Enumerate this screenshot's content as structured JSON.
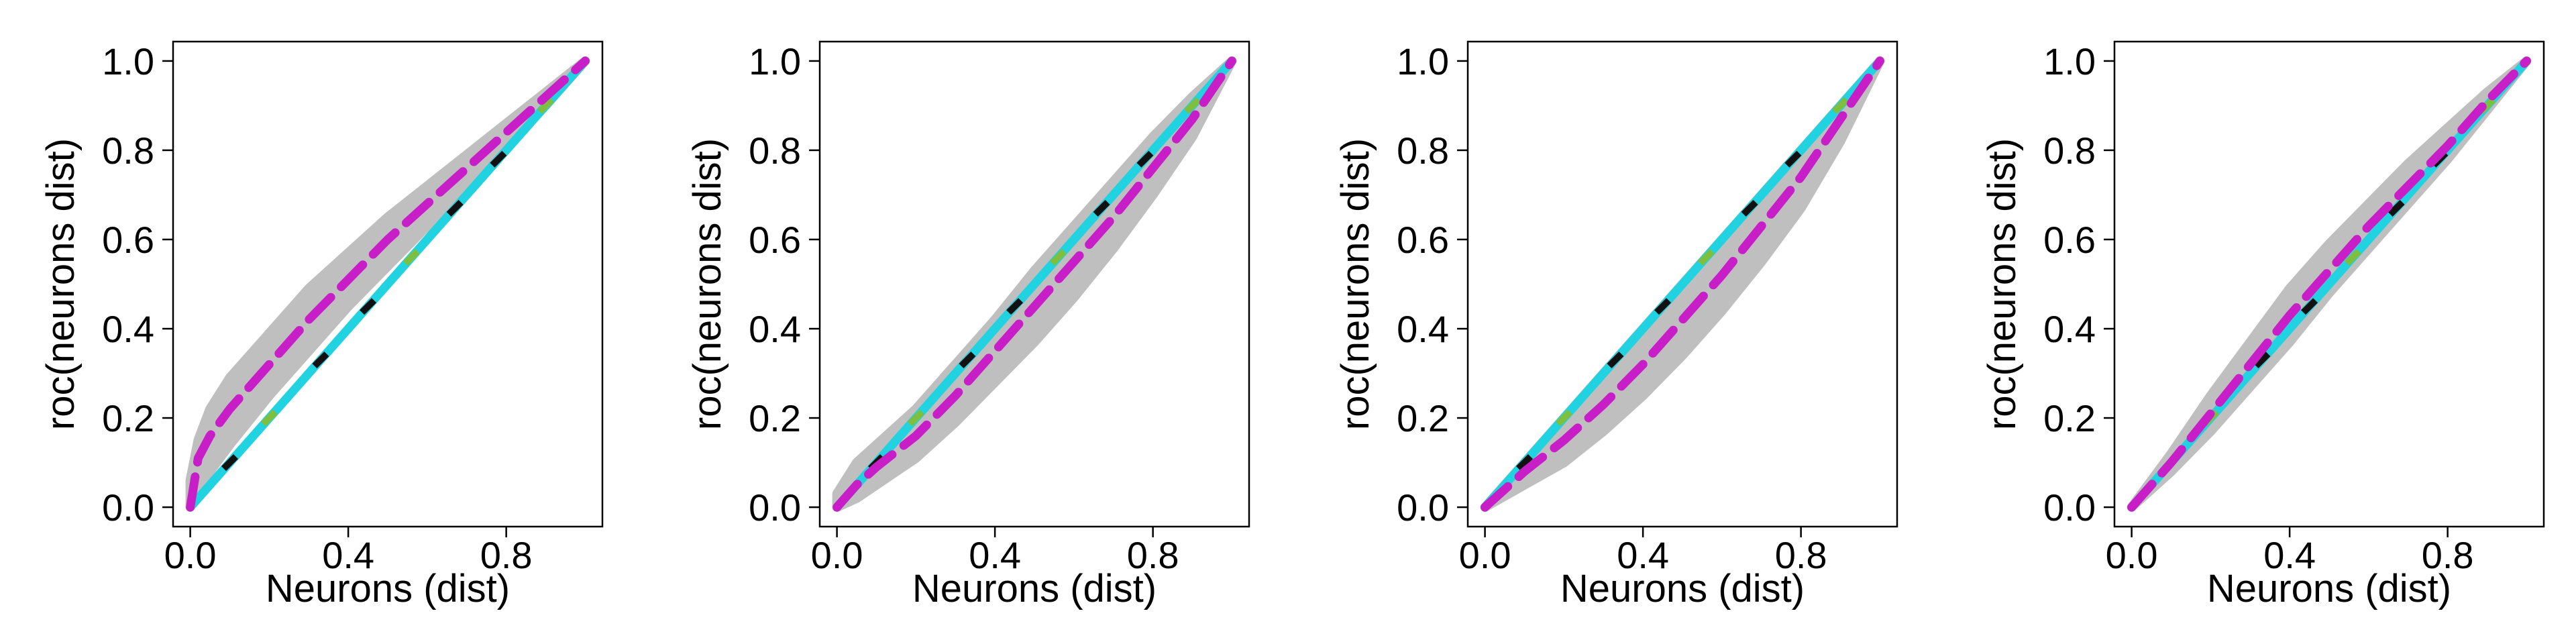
{
  "chart_data": [
    {
      "type": "line",
      "xlabel": "Neurons (dist)",
      "ylabel": "roc(neurons dist)",
      "xlim": [
        0,
        1
      ],
      "ylim": [
        0,
        1
      ],
      "xticks": [
        "0.0",
        "0.4",
        "0.8"
      ],
      "yticks": [
        "0.0",
        "0.2",
        "0.4",
        "0.6",
        "0.8",
        "1.0"
      ],
      "grid": false,
      "legend": "none",
      "series": [
        {
          "role": "band",
          "color": "#bfbfbf",
          "x": [
            0,
            0.02,
            0.05,
            0.1,
            0.2,
            0.3,
            0.4,
            0.5,
            0.6,
            0.7,
            0.8,
            0.9,
            1.0
          ],
          "upper": [
            0.06,
            0.15,
            0.22,
            0.29,
            0.39,
            0.49,
            0.57,
            0.65,
            0.72,
            0.79,
            0.86,
            0.93,
            1.0
          ],
          "lower": [
            0.0,
            0.03,
            0.08,
            0.14,
            0.25,
            0.35,
            0.45,
            0.54,
            0.63,
            0.72,
            0.81,
            0.9,
            1.0
          ]
        },
        {
          "role": "diagonal",
          "color": "#21d3e0",
          "x": [
            0,
            1
          ],
          "y": [
            0,
            1
          ]
        },
        {
          "role": "roc",
          "color": "#c81ec8",
          "x": [
            0,
            0.02,
            0.05,
            0.1,
            0.2,
            0.3,
            0.4,
            0.5,
            0.6,
            0.7,
            0.8,
            0.9,
            1.0
          ],
          "y": [
            0,
            0.11,
            0.16,
            0.22,
            0.32,
            0.42,
            0.51,
            0.6,
            0.68,
            0.76,
            0.84,
            0.92,
            1.0
          ]
        }
      ]
    },
    {
      "type": "line",
      "xlabel": "Neurons (dist)",
      "ylabel": "roc(neurons dist)",
      "xlim": [
        0,
        1
      ],
      "ylim": [
        0,
        1
      ],
      "xticks": [
        "0.0",
        "0.4",
        "0.8"
      ],
      "yticks": [
        "0.0",
        "0.2",
        "0.4",
        "0.6",
        "0.8",
        "1.0"
      ],
      "grid": false,
      "legend": "none",
      "series": [
        {
          "role": "band",
          "color": "#bfbfbf",
          "x": [
            0,
            0.05,
            0.1,
            0.2,
            0.3,
            0.4,
            0.5,
            0.6,
            0.7,
            0.8,
            0.9,
            1.0
          ],
          "upper": [
            0.03,
            0.1,
            0.14,
            0.22,
            0.32,
            0.42,
            0.53,
            0.63,
            0.73,
            0.83,
            0.92,
            1.0
          ],
          "lower": [
            0.0,
            0.02,
            0.05,
            0.11,
            0.19,
            0.28,
            0.37,
            0.47,
            0.58,
            0.7,
            0.83,
            1.0
          ]
        },
        {
          "role": "diagonal",
          "color": "#21d3e0",
          "x": [
            0,
            1
          ],
          "y": [
            0,
            1
          ]
        },
        {
          "role": "roc",
          "color": "#c81ec8",
          "x": [
            0,
            0.05,
            0.1,
            0.2,
            0.3,
            0.4,
            0.5,
            0.6,
            0.7,
            0.8,
            0.9,
            1.0
          ],
          "y": [
            0,
            0.05,
            0.09,
            0.16,
            0.25,
            0.35,
            0.45,
            0.55,
            0.65,
            0.76,
            0.87,
            1.0
          ]
        }
      ]
    },
    {
      "type": "line",
      "xlabel": "Neurons (dist)",
      "ylabel": "roc(neurons dist)",
      "xlim": [
        0,
        1
      ],
      "ylim": [
        0,
        1
      ],
      "xticks": [
        "0.0",
        "0.4",
        "0.8"
      ],
      "yticks": [
        "0.0",
        "0.2",
        "0.4",
        "0.6",
        "0.8",
        "1.0"
      ],
      "grid": false,
      "legend": "none",
      "series": [
        {
          "role": "band",
          "color": "#bfbfbf",
          "x": [
            0,
            0.1,
            0.2,
            0.3,
            0.4,
            0.5,
            0.6,
            0.7,
            0.8,
            0.9,
            1.0
          ],
          "upper": [
            0.0,
            0.1,
            0.2,
            0.3,
            0.4,
            0.5,
            0.6,
            0.7,
            0.8,
            0.9,
            1.0
          ],
          "lower": [
            0.0,
            0.05,
            0.1,
            0.17,
            0.25,
            0.34,
            0.44,
            0.55,
            0.67,
            0.82,
            1.0
          ]
        },
        {
          "role": "diagonal",
          "color": "#21d3e0",
          "x": [
            0,
            1
          ],
          "y": [
            0,
            1
          ]
        },
        {
          "role": "roc",
          "color": "#c81ec8",
          "x": [
            0,
            0.1,
            0.2,
            0.3,
            0.4,
            0.5,
            0.6,
            0.7,
            0.8,
            0.9,
            1.0
          ],
          "y": [
            0,
            0.08,
            0.15,
            0.23,
            0.32,
            0.42,
            0.52,
            0.63,
            0.74,
            0.87,
            1.0
          ]
        }
      ]
    },
    {
      "type": "line",
      "xlabel": "Neurons (dist)",
      "ylabel": "roc(neurons dist)",
      "xlim": [
        0,
        1
      ],
      "ylim": [
        0,
        1
      ],
      "xticks": [
        "0.0",
        "0.4",
        "0.8"
      ],
      "yticks": [
        "0.0",
        "0.2",
        "0.4",
        "0.6",
        "0.8",
        "1.0"
      ],
      "grid": false,
      "legend": "none",
      "series": [
        {
          "role": "band",
          "color": "#bfbfbf",
          "x": [
            0,
            0.1,
            0.2,
            0.3,
            0.4,
            0.5,
            0.6,
            0.7,
            0.8,
            0.9,
            1.0
          ],
          "upper": [
            0.0,
            0.12,
            0.25,
            0.37,
            0.49,
            0.59,
            0.68,
            0.77,
            0.85,
            0.93,
            1.0
          ],
          "lower": [
            0.0,
            0.08,
            0.17,
            0.27,
            0.37,
            0.48,
            0.58,
            0.68,
            0.78,
            0.89,
            1.0
          ]
        },
        {
          "role": "diagonal",
          "color": "#21d3e0",
          "x": [
            0,
            1
          ],
          "y": [
            0,
            1
          ]
        },
        {
          "role": "roc",
          "color": "#c81ec8",
          "x": [
            0,
            0.1,
            0.2,
            0.3,
            0.4,
            0.5,
            0.6,
            0.7,
            0.8,
            0.9,
            1.0
          ],
          "y": [
            0,
            0.1,
            0.21,
            0.32,
            0.43,
            0.53,
            0.63,
            0.72,
            0.81,
            0.91,
            1.0
          ]
        }
      ]
    }
  ]
}
